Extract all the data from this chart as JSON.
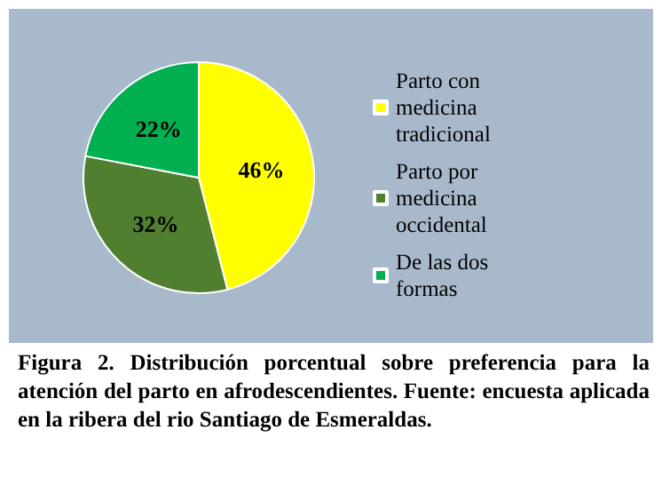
{
  "chart_data": {
    "type": "pie",
    "categories": [
      "Parto con medicina tradicional",
      "Parto por medicina occidental",
      "De las dos formas"
    ],
    "values": [
      46,
      32,
      22
    ],
    "colors": [
      "#ffff00",
      "#4f7f2f",
      "#00b050"
    ],
    "value_labels": [
      "46%",
      "32%",
      "22%"
    ],
    "legend": "right",
    "annotations": [
      "Figura 2. Distribución porcentual sobre preferencia para la atención del parto en afrodescendientes. Fuente: encuesta aplicada en la ribera del rio Santiago de Esmeraldas."
    ]
  }
}
